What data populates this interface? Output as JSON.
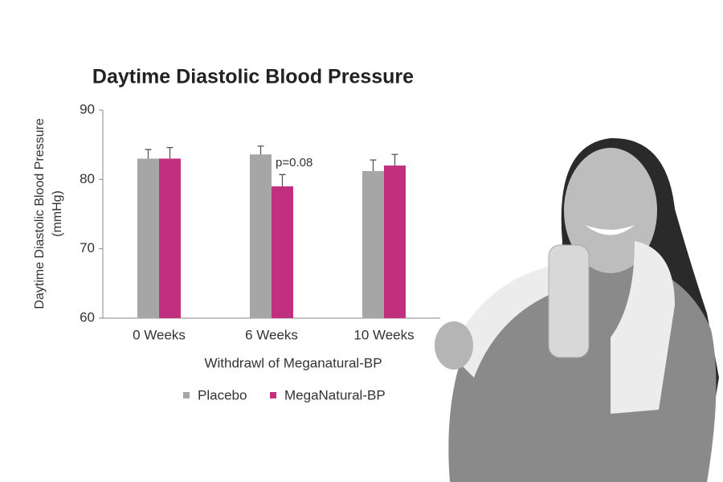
{
  "chart_data": {
    "type": "bar",
    "title": "Daytime Diastolic Blood Pressure",
    "ylabel": [
      "Daytime Diastolic Blood  Pressure",
      "(mmHg)"
    ],
    "xlabel": "Withdrawl of Meganatural-BP",
    "categories": [
      "0 Weeks",
      "6 Weeks",
      "10 Weeks"
    ],
    "series": [
      {
        "name": "Placebo",
        "color": "#a6a6a6",
        "values": [
          83,
          83.6,
          81.2
        ],
        "errors": [
          1.3,
          1.2,
          1.6
        ]
      },
      {
        "name": "MegaNatural-BP",
        "color": "#c0307f",
        "values": [
          83,
          79,
          82
        ],
        "errors": [
          1.6,
          1.7,
          1.6
        ]
      }
    ],
    "annotation": "p=0.08",
    "ylim": [
      60,
      90
    ],
    "yticks": [
      60,
      70,
      80,
      90
    ],
    "grid": false,
    "legend": "bottom"
  }
}
